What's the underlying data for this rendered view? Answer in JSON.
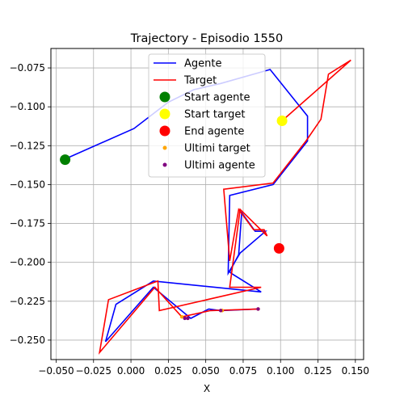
{
  "chart_data": {
    "type": "line",
    "title": "Trajectory - Episodio 1550",
    "xlabel": "X",
    "ylabel": "",
    "xlim": [
      -0.0535,
      0.1555
    ],
    "ylim": [
      -0.2625,
      -0.0625
    ],
    "xticks": [
      -0.05,
      -0.025,
      0.0,
      0.025,
      0.05,
      0.075,
      0.1,
      0.125,
      0.15
    ],
    "xtick_labels": [
      "−0.050",
      "−0.025",
      "0.000",
      "0.025",
      "0.050",
      "0.075",
      "0.100",
      "0.125",
      "0.150"
    ],
    "yticks": [
      -0.075,
      -0.1,
      -0.125,
      -0.15,
      -0.175,
      -0.2,
      -0.225,
      -0.25
    ],
    "ytick_labels": [
      "−0.075",
      "−0.100",
      "−0.125",
      "−0.150",
      "−0.175",
      "−0.200",
      "−0.225",
      "−0.250"
    ],
    "grid": true,
    "legend_position": "top-center",
    "series": [
      {
        "name": "Agente",
        "kind": "line",
        "color": "#0000ff",
        "points": [
          [
            -0.045,
            -0.134
          ],
          [
            0.002,
            -0.114
          ],
          [
            0.025,
            -0.097
          ],
          [
            0.042,
            -0.089
          ],
          [
            0.06,
            -0.085
          ],
          [
            0.093,
            -0.076
          ],
          [
            0.118,
            -0.106
          ],
          [
            0.118,
            -0.122
          ],
          [
            0.095,
            -0.15
          ],
          [
            0.066,
            -0.157
          ],
          [
            0.065,
            -0.207
          ],
          [
            0.073,
            -0.194
          ],
          [
            0.09,
            -0.18
          ],
          [
            0.083,
            -0.18
          ],
          [
            0.074,
            -0.168
          ],
          [
            0.072,
            -0.195
          ],
          [
            0.066,
            -0.206
          ],
          [
            0.067,
            -0.207
          ],
          [
            0.087,
            -0.219
          ],
          [
            0.015,
            -0.212
          ],
          [
            -0.01,
            -0.227
          ],
          [
            -0.017,
            -0.251
          ],
          [
            0.015,
            -0.216
          ],
          [
            0.04,
            -0.236
          ],
          [
            0.052,
            -0.23
          ],
          [
            0.06,
            -0.231
          ],
          [
            0.085,
            -0.23
          ]
        ]
      },
      {
        "name": "Target",
        "kind": "line",
        "color": "#ff0000",
        "points": [
          [
            0.101,
            -0.109
          ],
          [
            0.147,
            -0.07
          ],
          [
            0.132,
            -0.079
          ],
          [
            0.127,
            -0.108
          ],
          [
            0.117,
            -0.122
          ],
          [
            0.095,
            -0.149
          ],
          [
            0.062,
            -0.153
          ],
          [
            0.066,
            -0.199
          ],
          [
            0.072,
            -0.166
          ],
          [
            0.082,
            -0.179
          ],
          [
            0.089,
            -0.179
          ],
          [
            0.091,
            -0.183
          ],
          [
            0.073,
            -0.166
          ],
          [
            0.066,
            -0.216
          ],
          [
            0.087,
            -0.216
          ],
          [
            0.019,
            -0.231
          ],
          [
            0.018,
            -0.212
          ],
          [
            -0.015,
            -0.224
          ],
          [
            -0.021,
            -0.258
          ],
          [
            0.016,
            -0.216
          ],
          [
            0.034,
            -0.235
          ],
          [
            0.053,
            -0.231
          ],
          [
            0.085,
            -0.23
          ]
        ]
      },
      {
        "name": "Start agente",
        "kind": "marker",
        "color": "#008000",
        "size": 6.5,
        "points": [
          [
            -0.044,
            -0.134
          ]
        ]
      },
      {
        "name": "Start target",
        "kind": "marker",
        "color": "#ffff00",
        "size": 6.5,
        "points": [
          [
            0.101,
            -0.109
          ]
        ]
      },
      {
        "name": "End agente",
        "kind": "marker",
        "color": "#ff0000",
        "size": 6.5,
        "points": [
          [
            0.099,
            -0.191
          ]
        ]
      },
      {
        "name": "Ultimi target",
        "kind": "marker",
        "color": "#ffa500",
        "size": 2.2,
        "points": [
          [
            0.034,
            -0.235
          ],
          [
            0.038,
            -0.236
          ],
          [
            0.061,
            -0.231
          ],
          [
            0.085,
            -0.23
          ]
        ]
      },
      {
        "name": "Ultimi agente",
        "kind": "marker",
        "color": "#800080",
        "size": 2.2,
        "points": [
          [
            0.036,
            -0.236
          ],
          [
            0.038,
            -0.236
          ],
          [
            0.06,
            -0.231
          ],
          [
            0.085,
            -0.23
          ]
        ]
      }
    ]
  }
}
